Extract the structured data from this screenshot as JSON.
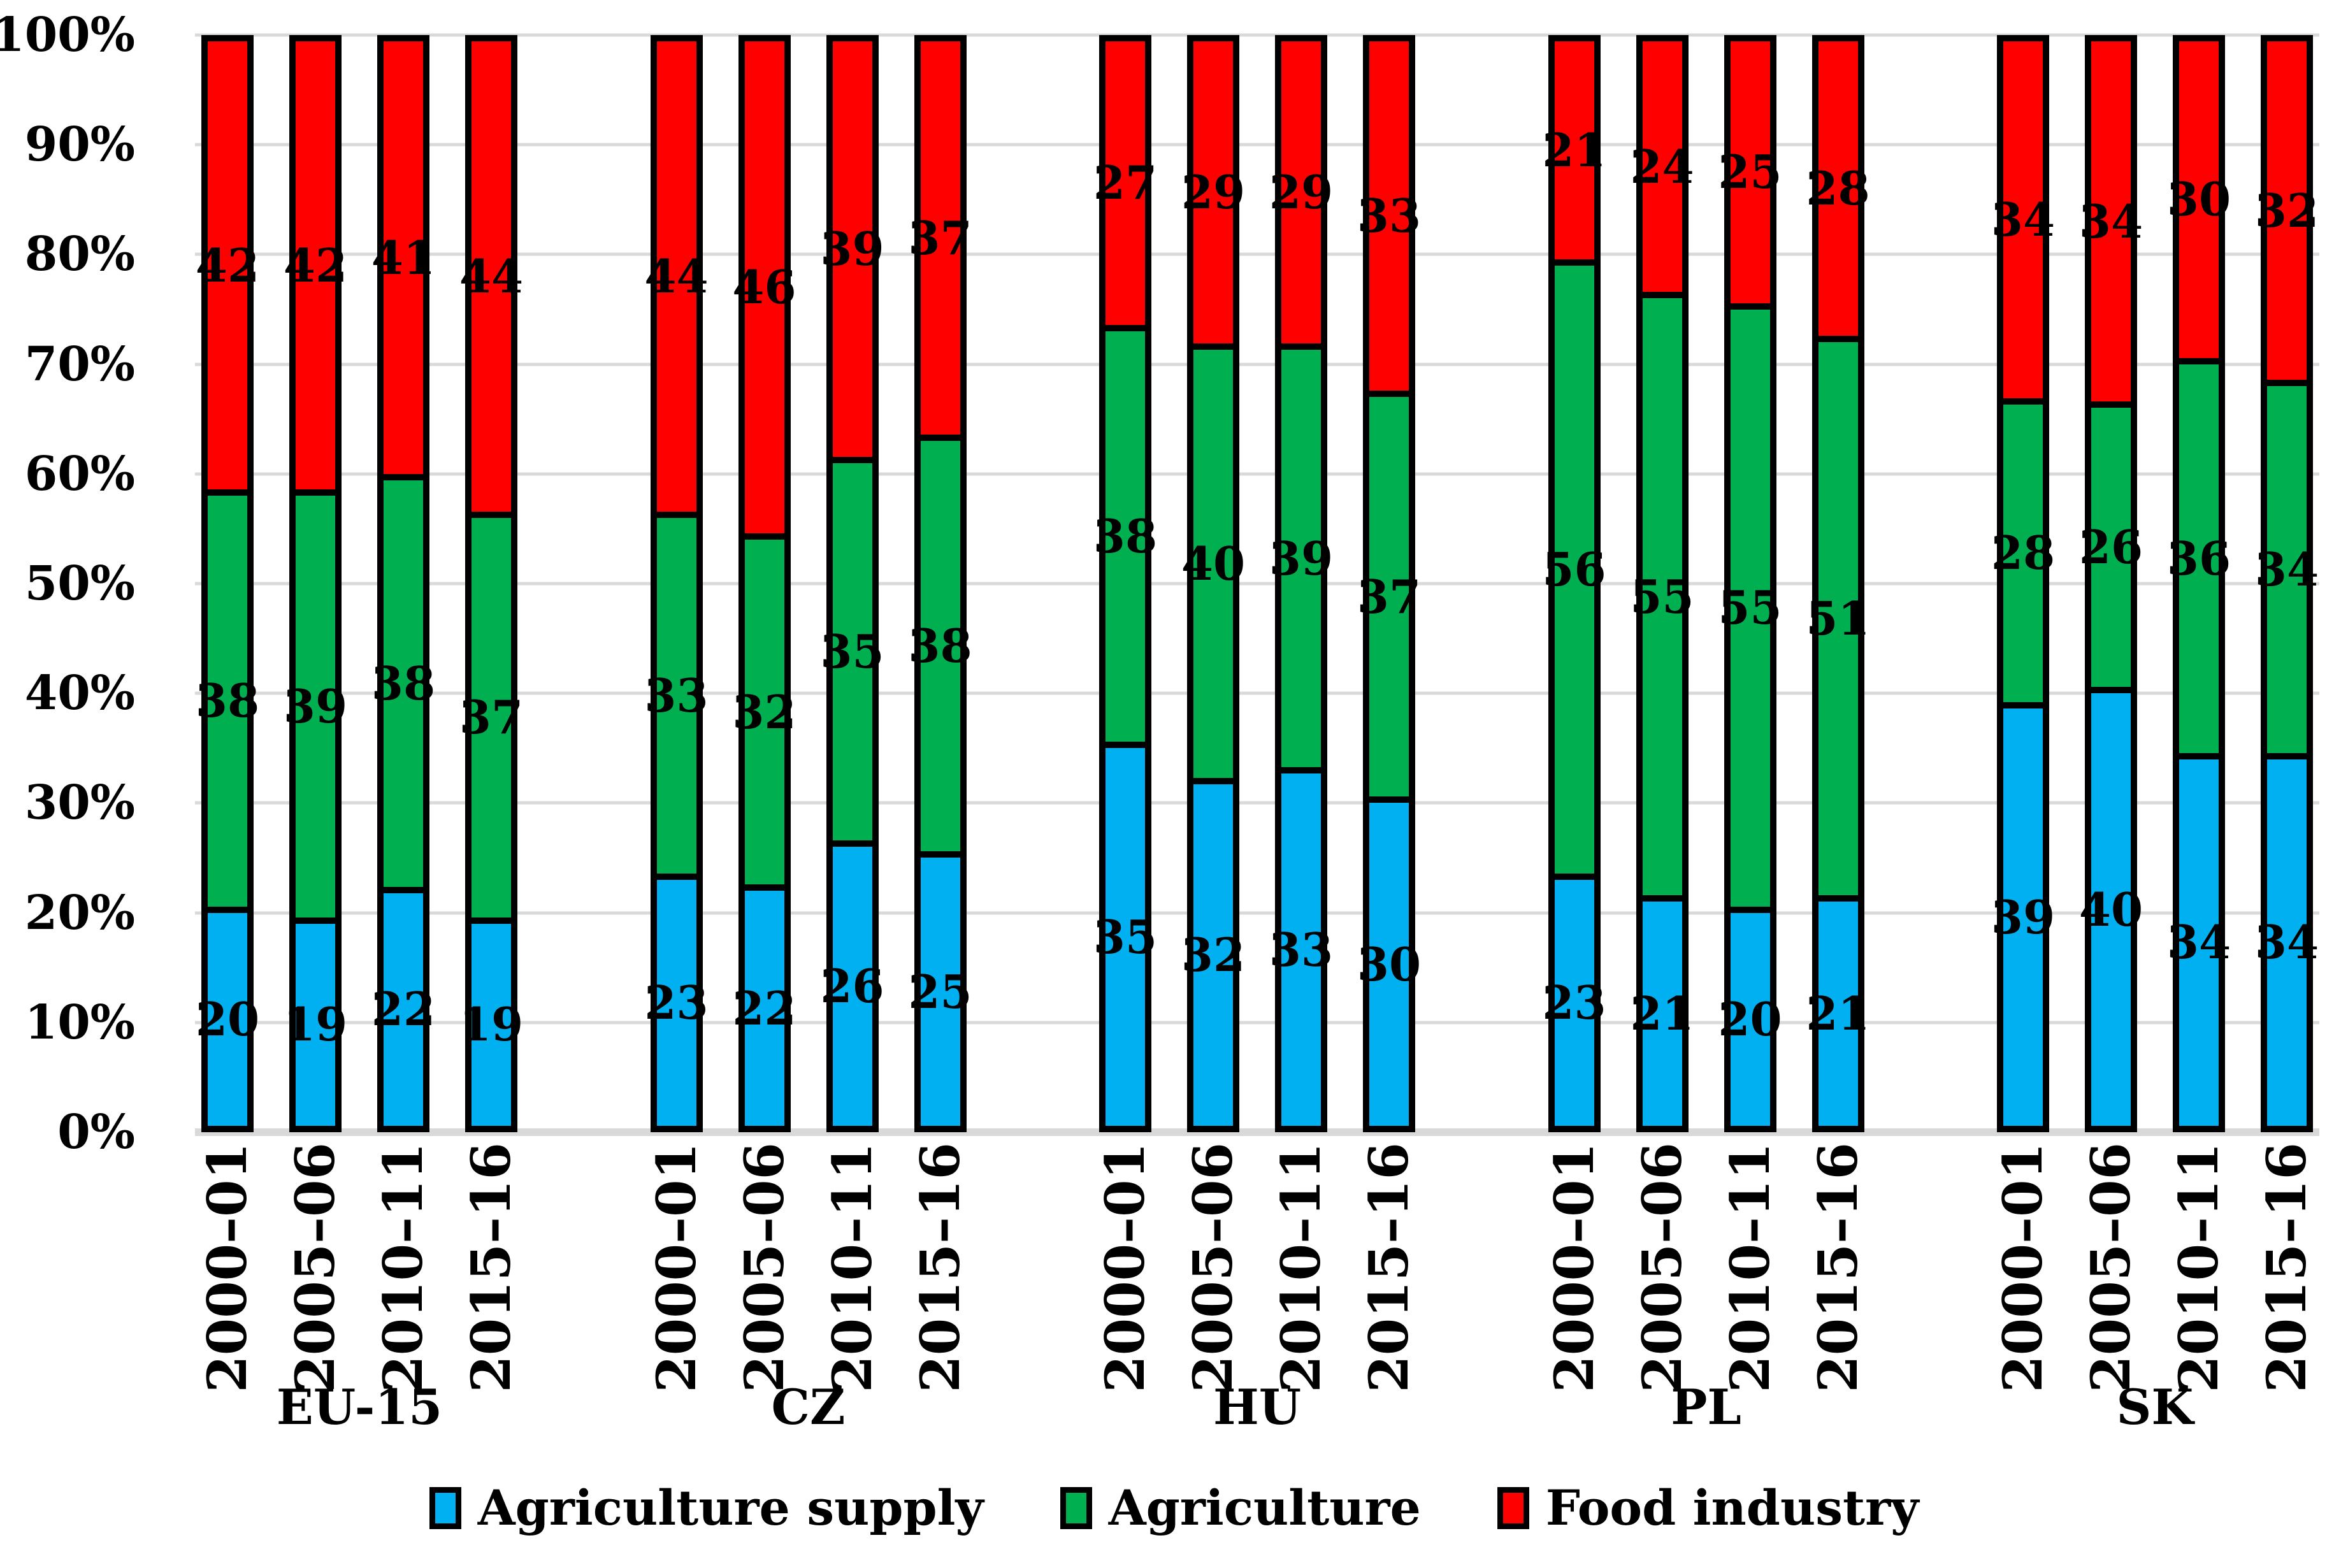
{
  "chart_data": {
    "type": "bar",
    "variant": "stacked-100-percent",
    "title": "",
    "xlabel": "",
    "ylabel": "",
    "categories": [
      "EU-15",
      "CZ",
      "HU",
      "PL",
      "SK"
    ],
    "periods": [
      "2000–01",
      "2005–06",
      "2010–11",
      "2015–16"
    ],
    "series": [
      {
        "name": "Agriculture supply",
        "color": "#00B0F0",
        "values": [
          [
            20,
            19,
            22,
            19
          ],
          [
            23,
            22,
            26,
            25
          ],
          [
            35,
            32,
            33,
            30
          ],
          [
            23,
            21,
            20,
            21
          ],
          [
            39,
            40,
            34,
            34
          ]
        ]
      },
      {
        "name": "Agriculture",
        "color": "#00B050",
        "values": [
          [
            38,
            39,
            38,
            37
          ],
          [
            33,
            32,
            35,
            38
          ],
          [
            38,
            40,
            39,
            37
          ],
          [
            56,
            55,
            55,
            51
          ],
          [
            28,
            26,
            36,
            34
          ]
        ]
      },
      {
        "name": "Food industry",
        "color": "#FF0000",
        "values": [
          [
            42,
            42,
            41,
            44
          ],
          [
            44,
            46,
            39,
            37
          ],
          [
            27,
            29,
            29,
            33
          ],
          [
            21,
            24,
            25,
            28
          ],
          [
            34,
            34,
            30,
            32
          ]
        ]
      }
    ],
    "y_axis": {
      "ticks": [
        "100%",
        "90%",
        "80%",
        "70%",
        "60%",
        "50%",
        "40%",
        "30%",
        "20%",
        "10%",
        "0%"
      ],
      "min": 0,
      "max": 100,
      "grid": true,
      "grid_color": "#D9D9D9"
    },
    "legend_position": "bottom"
  }
}
